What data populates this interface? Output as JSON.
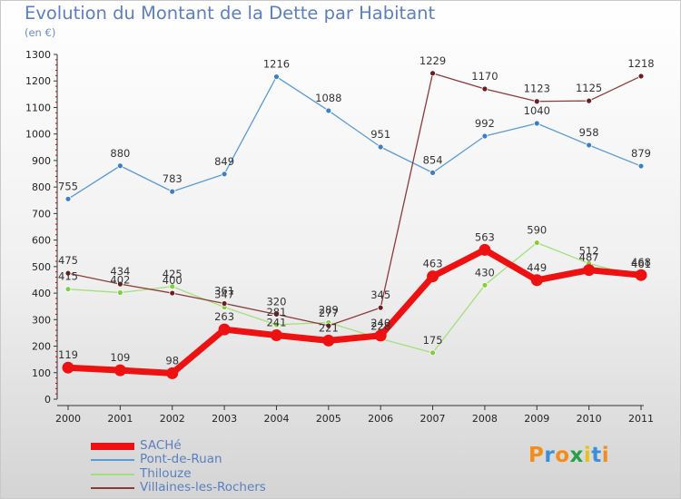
{
  "title": "Evolution du Montant de la Dette par Habitant",
  "subtitle": "(en €)",
  "brand": {
    "letters": [
      "P",
      "r",
      "o",
      "x",
      "i",
      "t",
      "i"
    ],
    "colors": [
      "#f28c1e",
      "#3a8fd8",
      "#f28c1e",
      "#2a9d4a",
      "#e8c21a",
      "#3a8fd8",
      "#f28c1e"
    ]
  },
  "chart_data": {
    "type": "line",
    "title": "Evolution du Montant de la Dette par Habitant",
    "ylabel": "(en €)",
    "xlabel": "",
    "ylim": [
      0,
      1300
    ],
    "yticks": [
      0,
      100,
      200,
      300,
      400,
      500,
      600,
      700,
      800,
      900,
      1000,
      1100,
      1200,
      1300
    ],
    "x": [
      "2000",
      "2001",
      "2002",
      "2003",
      "2004",
      "2005",
      "2006",
      "2007",
      "2008",
      "2009",
      "2010",
      "2011"
    ],
    "grid": false,
    "legend_position": "bottom-left",
    "series": [
      {
        "name": "Pont-de-Ruan",
        "color": "#5a9bd5",
        "dot": "#3d7fc4",
        "thick": false,
        "values": [
          755,
          880,
          783,
          849,
          1216,
          1088,
          951,
          854,
          992,
          1040,
          958,
          879
        ]
      },
      {
        "name": "Thilouze",
        "color": "#a3e07a",
        "dot": "#7fcf3e",
        "thick": false,
        "values": [
          415,
          402,
          425,
          347,
          281,
          289,
          228,
          175,
          430,
          590,
          512,
          461
        ]
      },
      {
        "name": "Villaines-les-Rochers",
        "color": "#8b3a3a",
        "dot": "#6e1e1e",
        "thick": false,
        "values": [
          475,
          434,
          400,
          361,
          320,
          277,
          345,
          1229,
          1170,
          1123,
          1125,
          1218
        ]
      },
      {
        "name": "SACHé",
        "color": "#ee1111",
        "dot": "#ee1111",
        "thick": true,
        "values": [
          119,
          109,
          98,
          263,
          241,
          221,
          240,
          463,
          563,
          449,
          487,
          468
        ]
      }
    ],
    "legend_order": [
      "SACHé",
      "Pont-de-Ruan",
      "Thilouze",
      "Villaines-les-Rochers"
    ]
  }
}
